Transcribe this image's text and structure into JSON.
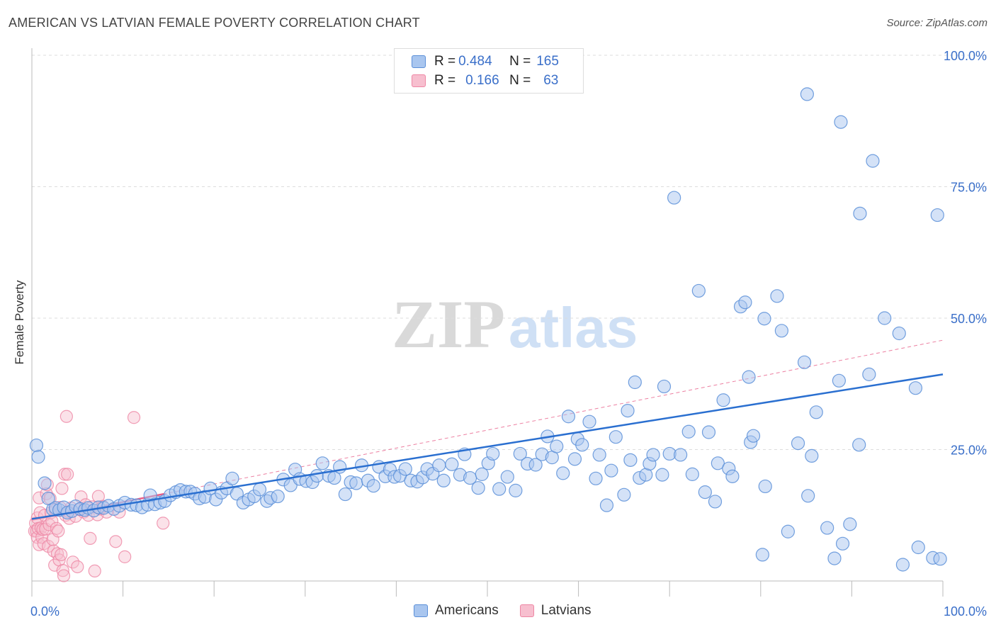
{
  "title": "AMERICAN VS LATVIAN FEMALE POVERTY CORRELATION CHART",
  "source": "Source: ZipAtlas.com",
  "watermark": {
    "part1": "ZIP",
    "part2": "atlas"
  },
  "legend_top": [
    {
      "r_label": "R = ",
      "r_value": "0.484",
      "n_label": "N = ",
      "n_value": "165"
    },
    {
      "r_label": "R = ",
      "r_value": "0.166",
      "n_label": "N = ",
      "n_value": "63"
    }
  ],
  "colors": {
    "americans_fill": "#a9c6ef",
    "americans_stroke": "#5b8fd8",
    "americans_line": "#2a6fd0",
    "latvians_fill": "#f7bfcf",
    "latvians_stroke": "#ee86a4",
    "latvians_line": "#e8608a",
    "grid": "#dddddd",
    "tick_label": "#3a6fc9"
  },
  "chart_data": {
    "type": "scatter",
    "title": "AMERICAN VS LATVIAN FEMALE POVERTY CORRELATION CHART",
    "xlabel": "",
    "ylabel": "Female Poverty",
    "xlim": [
      0,
      100
    ],
    "ylim": [
      0,
      100
    ],
    "x_tick_labels": [
      "0.0%",
      "100.0%"
    ],
    "y_tick_labels": [
      "25.0%",
      "50.0%",
      "75.0%",
      "100.0%"
    ],
    "y_ticks": [
      25,
      50,
      75,
      100
    ],
    "grid": true,
    "legend": "bottom-center",
    "series": [
      {
        "name": "Americans",
        "r": 0.484,
        "n": 165,
        "trend": {
          "x": [
            0,
            100
          ],
          "y": [
            11.8,
            39.3
          ]
        },
        "points": [
          [
            0.5,
            25.8
          ],
          [
            0.7,
            23.6
          ],
          [
            1.4,
            18.6
          ],
          [
            1.8,
            15.7
          ],
          [
            2.3,
            13.6
          ],
          [
            2.6,
            13.9
          ],
          [
            3.0,
            13.5
          ],
          [
            3.5,
            14.0
          ],
          [
            3.9,
            13.0
          ],
          [
            4.4,
            13.3
          ],
          [
            4.8,
            14.2
          ],
          [
            5.3,
            13.7
          ],
          [
            5.8,
            13.5
          ],
          [
            6.2,
            13.9
          ],
          [
            6.8,
            13.4
          ],
          [
            7.3,
            14.0
          ],
          [
            7.9,
            13.9
          ],
          [
            8.4,
            14.3
          ],
          [
            9.0,
            13.7
          ],
          [
            9.6,
            14.3
          ],
          [
            10.2,
            14.9
          ],
          [
            10.9,
            14.5
          ],
          [
            11.5,
            14.4
          ],
          [
            12.1,
            14.0
          ],
          [
            12.7,
            14.5
          ],
          [
            13.0,
            16.3
          ],
          [
            13.5,
            14.6
          ],
          [
            14.1,
            14.9
          ],
          [
            14.6,
            15.2
          ],
          [
            15.2,
            16.3
          ],
          [
            15.8,
            16.9
          ],
          [
            16.3,
            17.3
          ],
          [
            16.9,
            17.0
          ],
          [
            17.4,
            17.0
          ],
          [
            17.9,
            16.6
          ],
          [
            18.4,
            15.7
          ],
          [
            19.0,
            16.0
          ],
          [
            19.6,
            17.6
          ],
          [
            20.2,
            15.5
          ],
          [
            20.8,
            16.8
          ],
          [
            21.4,
            17.6
          ],
          [
            22.0,
            19.5
          ],
          [
            22.5,
            16.6
          ],
          [
            23.2,
            14.9
          ],
          [
            23.8,
            15.5
          ],
          [
            24.4,
            16.1
          ],
          [
            25.0,
            17.4
          ],
          [
            25.8,
            15.2
          ],
          [
            26.2,
            15.8
          ],
          [
            27.0,
            16.1
          ],
          [
            27.6,
            19.3
          ],
          [
            28.4,
            18.2
          ],
          [
            28.9,
            21.2
          ],
          [
            29.4,
            19.4
          ],
          [
            30.1,
            19.0
          ],
          [
            30.8,
            18.8
          ],
          [
            31.3,
            20.0
          ],
          [
            31.9,
            22.4
          ],
          [
            32.6,
            20.0
          ],
          [
            33.2,
            19.6
          ],
          [
            33.8,
            21.7
          ],
          [
            34.4,
            16.5
          ],
          [
            35.0,
            18.8
          ],
          [
            35.6,
            18.6
          ],
          [
            36.2,
            22.0
          ],
          [
            36.9,
            19.1
          ],
          [
            37.5,
            18.1
          ],
          [
            38.1,
            21.7
          ],
          [
            38.8,
            19.9
          ],
          [
            39.3,
            21.2
          ],
          [
            39.8,
            19.8
          ],
          [
            40.4,
            20.0
          ],
          [
            41.0,
            21.3
          ],
          [
            41.6,
            19.1
          ],
          [
            42.3,
            18.9
          ],
          [
            42.9,
            19.7
          ],
          [
            43.4,
            21.3
          ],
          [
            44.0,
            20.4
          ],
          [
            44.7,
            22.0
          ],
          [
            45.2,
            19.1
          ],
          [
            46.1,
            22.2
          ],
          [
            47.0,
            20.2
          ],
          [
            47.5,
            24.1
          ],
          [
            48.1,
            19.6
          ],
          [
            49.0,
            17.7
          ],
          [
            49.4,
            20.3
          ],
          [
            50.1,
            22.4
          ],
          [
            50.6,
            24.2
          ],
          [
            51.3,
            17.5
          ],
          [
            52.2,
            19.8
          ],
          [
            53.1,
            17.2
          ],
          [
            53.6,
            24.2
          ],
          [
            54.4,
            22.3
          ],
          [
            55.3,
            22.1
          ],
          [
            56.0,
            24.1
          ],
          [
            56.6,
            27.5
          ],
          [
            57.1,
            23.5
          ],
          [
            57.6,
            25.6
          ],
          [
            58.3,
            20.5
          ],
          [
            58.9,
            31.3
          ],
          [
            59.6,
            23.2
          ],
          [
            59.9,
            27.0
          ],
          [
            60.4,
            25.9
          ],
          [
            61.2,
            30.3
          ],
          [
            61.9,
            19.5
          ],
          [
            62.3,
            24.0
          ],
          [
            63.1,
            14.4
          ],
          [
            63.6,
            21.0
          ],
          [
            64.1,
            27.4
          ],
          [
            65.0,
            16.4
          ],
          [
            65.4,
            32.4
          ],
          [
            65.7,
            23.0
          ],
          [
            66.2,
            37.8
          ],
          [
            66.7,
            19.6
          ],
          [
            67.4,
            20.2
          ],
          [
            67.8,
            22.3
          ],
          [
            68.2,
            24.0
          ],
          [
            69.2,
            20.2
          ],
          [
            69.4,
            37.0
          ],
          [
            70.0,
            24.2
          ],
          [
            70.5,
            72.9
          ],
          [
            71.2,
            24.0
          ],
          [
            72.1,
            28.4
          ],
          [
            72.5,
            20.3
          ],
          [
            73.2,
            55.2
          ],
          [
            73.9,
            16.9
          ],
          [
            74.3,
            28.3
          ],
          [
            75.0,
            15.1
          ],
          [
            75.3,
            22.4
          ],
          [
            75.9,
            34.4
          ],
          [
            76.5,
            21.4
          ],
          [
            76.9,
            19.9
          ],
          [
            77.8,
            52.2
          ],
          [
            78.3,
            53.0
          ],
          [
            78.7,
            38.8
          ],
          [
            78.9,
            26.4
          ],
          [
            79.2,
            27.6
          ],
          [
            80.2,
            5.0
          ],
          [
            80.4,
            49.9
          ],
          [
            80.5,
            18.0
          ],
          [
            81.8,
            54.2
          ],
          [
            82.3,
            47.6
          ],
          [
            83.0,
            9.4
          ],
          [
            84.1,
            26.2
          ],
          [
            84.8,
            41.6
          ],
          [
            85.2,
            16.2
          ],
          [
            85.6,
            23.8
          ],
          [
            86.1,
            32.1
          ],
          [
            87.3,
            10.1
          ],
          [
            88.1,
            4.3
          ],
          [
            88.6,
            38.1
          ],
          [
            89.0,
            7.1
          ],
          [
            89.8,
            10.8
          ],
          [
            90.8,
            25.9
          ],
          [
            90.9,
            69.9
          ],
          [
            91.9,
            39.3
          ],
          [
            93.6,
            50.0
          ],
          [
            95.2,
            47.1
          ],
          [
            95.6,
            3.1
          ],
          [
            97.0,
            36.7
          ],
          [
            97.3,
            6.4
          ],
          [
            85.1,
            92.6
          ],
          [
            88.8,
            87.3
          ],
          [
            92.3,
            79.9
          ],
          [
            99.4,
            69.6
          ],
          [
            98.9,
            4.4
          ],
          [
            99.7,
            4.2
          ]
        ]
      },
      {
        "name": "Latvians",
        "r": 0.166,
        "n": 63,
        "trend": {
          "x": [
            0,
            100
          ],
          "y": [
            11.6,
            45.8
          ]
        },
        "points": [
          [
            0.3,
            9.5
          ],
          [
            0.4,
            11.0
          ],
          [
            0.5,
            9.5
          ],
          [
            0.6,
            12.0
          ],
          [
            0.6,
            8.3
          ],
          [
            0.7,
            10.0
          ],
          [
            0.8,
            15.8
          ],
          [
            0.8,
            6.9
          ],
          [
            0.9,
            13.0
          ],
          [
            1.0,
            10.1
          ],
          [
            1.1,
            8.3
          ],
          [
            1.2,
            9.8
          ],
          [
            1.3,
            7.1
          ],
          [
            1.4,
            12.5
          ],
          [
            1.5,
            9.9
          ],
          [
            1.6,
            16.6
          ],
          [
            1.7,
            18.3
          ],
          [
            1.8,
            6.6
          ],
          [
            1.9,
            10.7
          ],
          [
            2.0,
            15.7
          ],
          [
            2.1,
            13.0
          ],
          [
            2.2,
            11.4
          ],
          [
            2.3,
            7.9
          ],
          [
            2.4,
            5.7
          ],
          [
            2.5,
            3.0
          ],
          [
            2.6,
            13.5
          ],
          [
            2.7,
            10.0
          ],
          [
            2.8,
            5.2
          ],
          [
            2.9,
            9.5
          ],
          [
            3.0,
            4.0
          ],
          [
            3.1,
            14.0
          ],
          [
            3.2,
            5.0
          ],
          [
            3.3,
            17.6
          ],
          [
            3.4,
            2.0
          ],
          [
            3.5,
            1.0
          ],
          [
            3.6,
            20.3
          ],
          [
            3.7,
            12.5
          ],
          [
            3.8,
            31.3
          ],
          [
            3.9,
            20.3
          ],
          [
            4.0,
            13.2
          ],
          [
            4.1,
            11.9
          ],
          [
            4.3,
            13.9
          ],
          [
            4.5,
            3.6
          ],
          [
            4.8,
            12.3
          ],
          [
            5.0,
            2.7
          ],
          [
            5.2,
            13.6
          ],
          [
            5.4,
            16.0
          ],
          [
            5.7,
            13.1
          ],
          [
            5.9,
            14.5
          ],
          [
            6.2,
            12.5
          ],
          [
            6.4,
            8.1
          ],
          [
            6.6,
            14.1
          ],
          [
            6.9,
            1.9
          ],
          [
            7.2,
            12.6
          ],
          [
            7.3,
            16.1
          ],
          [
            7.5,
            13.7
          ],
          [
            7.8,
            14.2
          ],
          [
            8.2,
            13.1
          ],
          [
            9.2,
            7.5
          ],
          [
            9.6,
            13.1
          ],
          [
            10.2,
            4.6
          ],
          [
            11.2,
            31.1
          ],
          [
            14.4,
            11.0
          ]
        ]
      }
    ]
  },
  "bottom_legend": [
    "Americans",
    "Latvians"
  ]
}
